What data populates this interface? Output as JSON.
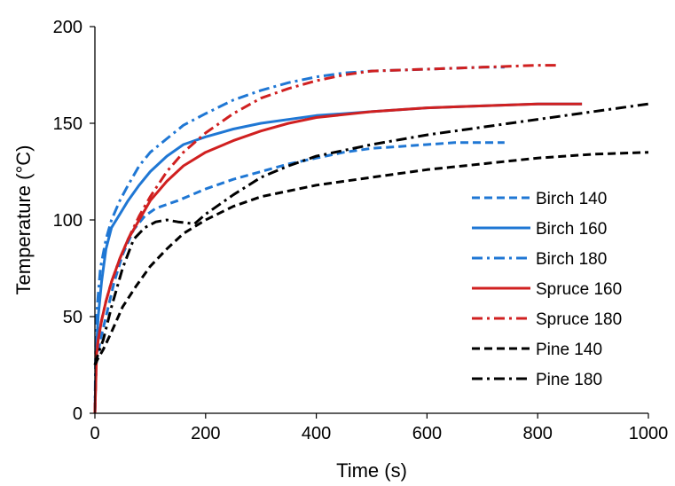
{
  "chart_data": {
    "type": "line",
    "xlabel": "Time (s)",
    "ylabel": "Temperature (°C)",
    "xlim": [
      0,
      1000
    ],
    "ylim": [
      0,
      200
    ],
    "x_ticks": [
      0,
      200,
      400,
      600,
      800,
      1000
    ],
    "y_ticks": [
      0,
      50,
      100,
      150,
      200
    ],
    "x_tick_labels": [
      "0",
      "200",
      "400",
      "600",
      "800",
      "1000"
    ],
    "y_tick_labels": [
      "0",
      "50",
      "100",
      "150",
      "200"
    ],
    "grid": false,
    "legend_position": "right",
    "series": [
      {
        "name": "Birch 140",
        "color": "#1f77d4",
        "dash": "dashed",
        "x": [
          0,
          2,
          5,
          10,
          20,
          35,
          50,
          70,
          90,
          110,
          150,
          200,
          250,
          300,
          350,
          400,
          450,
          500,
          550,
          600,
          650,
          700,
          740
        ],
        "y": [
          0,
          25,
          30,
          38,
          50,
          68,
          82,
          95,
          102,
          106,
          110,
          116,
          121,
          125,
          129,
          132,
          135,
          137,
          138,
          139,
          140,
          140,
          140
        ]
      },
      {
        "name": "Birch 160",
        "color": "#1f77d4",
        "dash": "solid",
        "x": [
          0,
          3,
          6,
          12,
          20,
          30,
          45,
          60,
          80,
          100,
          130,
          160,
          200,
          250,
          300,
          400,
          500,
          600,
          700,
          800,
          880
        ],
        "y": [
          0,
          35,
          50,
          68,
          85,
          96,
          103,
          110,
          118,
          125,
          133,
          139,
          143,
          147,
          150,
          154,
          156,
          158,
          159,
          160,
          160
        ]
      },
      {
        "name": "Birch 180",
        "color": "#1f77d4",
        "dash": "dashdot",
        "x": [
          0,
          2,
          5,
          10,
          20,
          30,
          45,
          60,
          80,
          100,
          130,
          160,
          200,
          250,
          300,
          350,
          400,
          450,
          500,
          600,
          700,
          740
        ],
        "y": [
          0,
          45,
          58,
          75,
          90,
          100,
          110,
          118,
          128,
          135,
          142,
          149,
          155,
          162,
          167,
          171,
          174,
          176,
          177,
          178,
          179,
          179
        ]
      },
      {
        "name": "Spruce 160",
        "color": "#d02020",
        "dash": "solid",
        "x": [
          0,
          3,
          6,
          12,
          20,
          30,
          45,
          60,
          80,
          100,
          130,
          160,
          200,
          250,
          300,
          350,
          400,
          500,
          600,
          700,
          800,
          880
        ],
        "y": [
          0,
          30,
          38,
          48,
          58,
          68,
          80,
          90,
          100,
          110,
          120,
          128,
          135,
          141,
          146,
          150,
          153,
          156,
          158,
          159,
          160,
          160
        ]
      },
      {
        "name": "Spruce 180",
        "color": "#d02020",
        "dash": "dashdot",
        "x": [
          0,
          3,
          6,
          12,
          20,
          30,
          45,
          60,
          80,
          100,
          130,
          160,
          200,
          250,
          300,
          350,
          400,
          450,
          500,
          600,
          700,
          800,
          840
        ],
        "y": [
          0,
          32,
          38,
          48,
          58,
          68,
          80,
          90,
          102,
          112,
          125,
          135,
          145,
          155,
          163,
          168,
          172,
          175,
          177,
          178,
          179,
          180,
          180
        ]
      },
      {
        "name": "Pine 140",
        "color": "#000000",
        "dash": "dashed",
        "x": [
          0,
          5,
          15,
          30,
          50,
          75,
          100,
          130,
          160,
          200,
          250,
          300,
          400,
          500,
          600,
          700,
          800,
          900,
          1000
        ],
        "y": [
          25,
          28,
          33,
          42,
          55,
          66,
          76,
          85,
          93,
          100,
          107,
          112,
          118,
          122,
          126,
          129,
          132,
          134,
          135
        ]
      },
      {
        "name": "Pine 180",
        "color": "#000000",
        "dash": "dashdot",
        "x": [
          0,
          5,
          15,
          30,
          50,
          70,
          90,
          110,
          130,
          150,
          180,
          200,
          250,
          300,
          350,
          400,
          500,
          600,
          700,
          800,
          900,
          1000
        ],
        "y": [
          25,
          30,
          38,
          55,
          75,
          90,
          96,
          99,
          100,
          99,
          98,
          103,
          113,
          122,
          128,
          133,
          139,
          144,
          148,
          152,
          156,
          160
        ]
      }
    ]
  }
}
